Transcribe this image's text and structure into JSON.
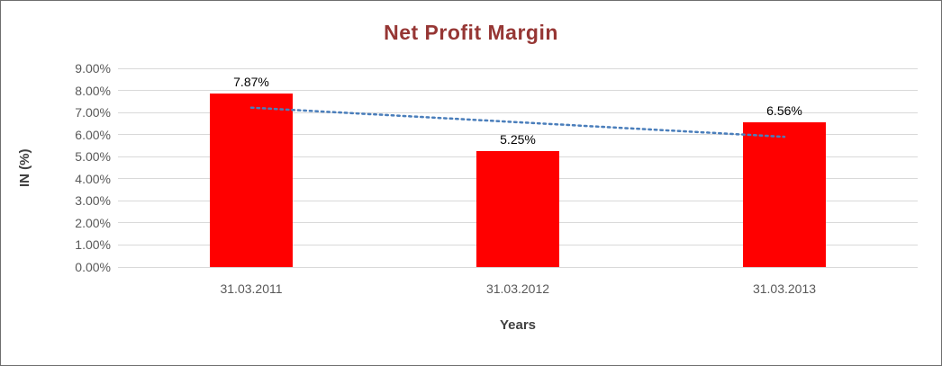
{
  "chart_data": {
    "type": "bar",
    "title": "Net Profit Margin",
    "title_color": "#963634",
    "categories": [
      "31.03.2011",
      "31.03.2012",
      "31.03.2013"
    ],
    "values": [
      7.87,
      5.25,
      6.56
    ],
    "data_labels": [
      "7.87%",
      "5.25%",
      "6.56%"
    ],
    "xlabel": "Years",
    "ylabel": "IN (%)",
    "ylim": [
      0,
      9
    ],
    "y_tick_step": 1,
    "y_tick_labels": [
      "0.00%",
      "1.00%",
      "2.00%",
      "3.00%",
      "4.00%",
      "5.00%",
      "6.00%",
      "7.00%",
      "8.00%",
      "9.00%"
    ],
    "bar_color": "#ff0000",
    "gridline_color": "#d9d9d9",
    "gridlines": true,
    "legend": "none",
    "trendline": {
      "type": "linear",
      "style": "dotted",
      "color": "#4a7ebb",
      "start_value": 7.22,
      "end_value": 5.9
    }
  }
}
